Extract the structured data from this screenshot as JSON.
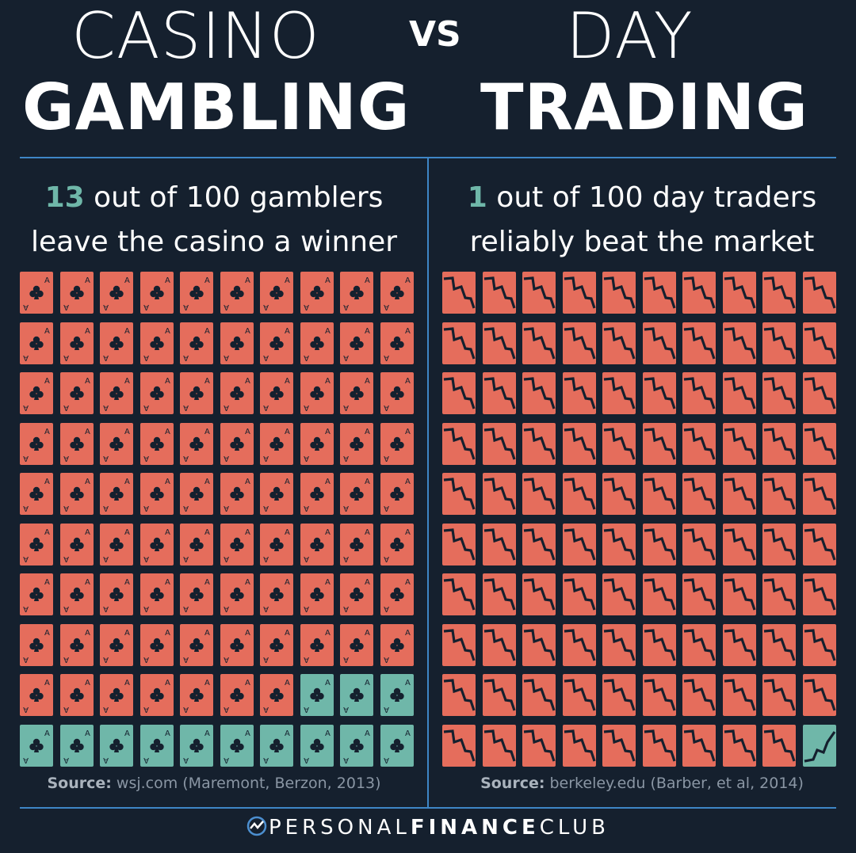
{
  "title": {
    "left_line1": "CASINO",
    "left_line2": "GAMBLING",
    "vs": "VS",
    "right_line1": "DAY",
    "right_line2": "TRADING"
  },
  "left": {
    "stat_number": "13",
    "stat_rest_line1": " out of 100 gamblers",
    "stat_line2": "leave the casino a winner",
    "source_label": "Source:",
    "source_text": " wsj.com (Maremont, Berzon, 2013)"
  },
  "right": {
    "stat_number": "1",
    "stat_rest_line1": " out of 100 day traders",
    "stat_line2": "reliably beat the market",
    "source_label": "Source:",
    "source_text": " berkeley.edu (Barber, et al, 2014)"
  },
  "brand": {
    "part1": "PERSONAL",
    "part2": "FINANCE",
    "part3": "CLUB"
  },
  "colors": {
    "background": "#15202e",
    "loser": "#e56d5c",
    "winner": "#6fb7a9",
    "divider": "#3e86c6"
  },
  "chart_data": [
    {
      "type": "waffle",
      "icon": "ace-of-clubs-card",
      "total": 100,
      "winners": 13,
      "losers": 87,
      "rows": 10,
      "cols": 10
    },
    {
      "type": "waffle",
      "icon": "stock-chart-card",
      "total": 100,
      "winners": 1,
      "losers": 99,
      "rows": 10,
      "cols": 10
    }
  ]
}
